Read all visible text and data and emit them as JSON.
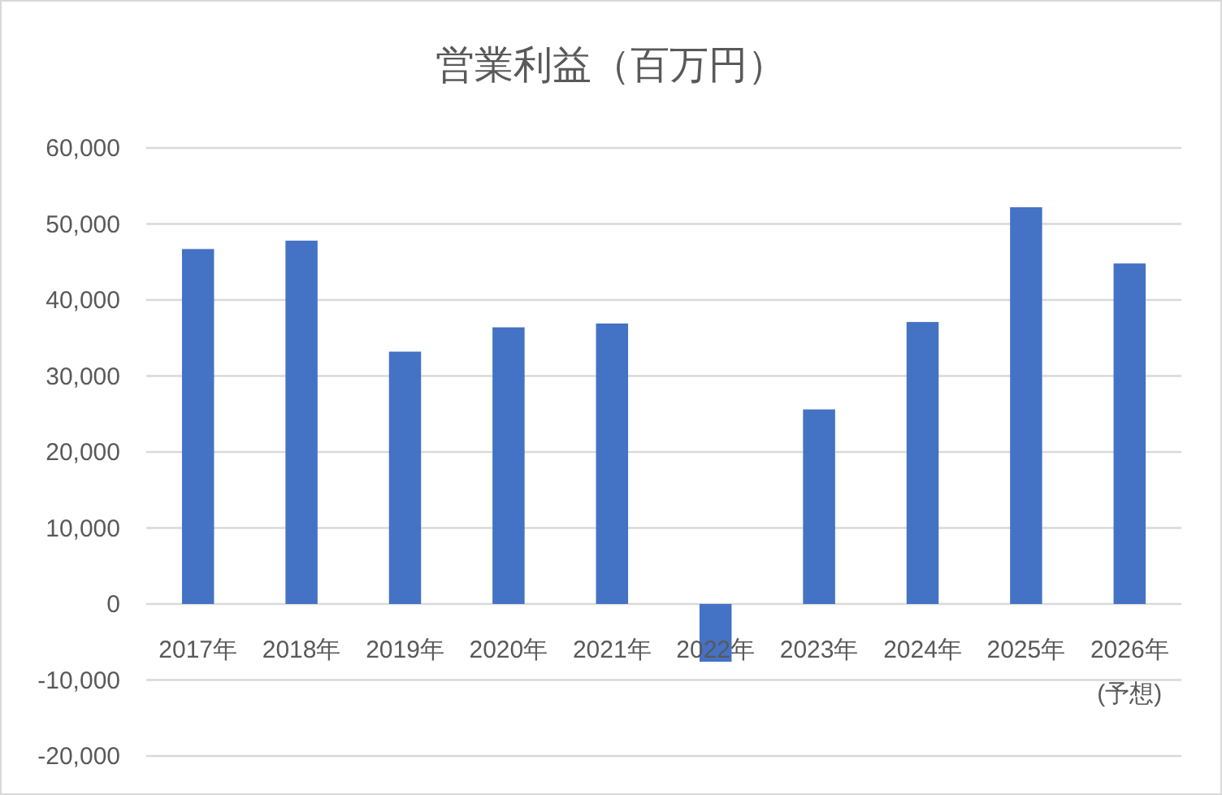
{
  "chart_data": {
    "type": "bar",
    "title": "営業利益（百万円）",
    "categories": [
      "2017年",
      "2018年",
      "2019年",
      "2020年",
      "2021年",
      "2022年",
      "2023年",
      "2024年",
      "2025年",
      "2026年\n(予想)"
    ],
    "values": [
      46700,
      47800,
      33200,
      36400,
      36900,
      -7600,
      25600,
      37100,
      52200,
      44800
    ],
    "color": "#4472c4",
    "ylim": [
      -20000,
      60000
    ],
    "yticks": [
      {
        "value": -20000,
        "label": "-20,000"
      },
      {
        "value": -10000,
        "label": "-10,000"
      },
      {
        "value": 0,
        "label": "0"
      },
      {
        "value": 10000,
        "label": "10,000"
      },
      {
        "value": 20000,
        "label": "20,000"
      },
      {
        "value": 30000,
        "label": "30,000"
      },
      {
        "value": 40000,
        "label": "40,000"
      },
      {
        "value": 50000,
        "label": "50,000"
      },
      {
        "value": 60000,
        "label": "60,000"
      }
    ],
    "grid": "y"
  }
}
